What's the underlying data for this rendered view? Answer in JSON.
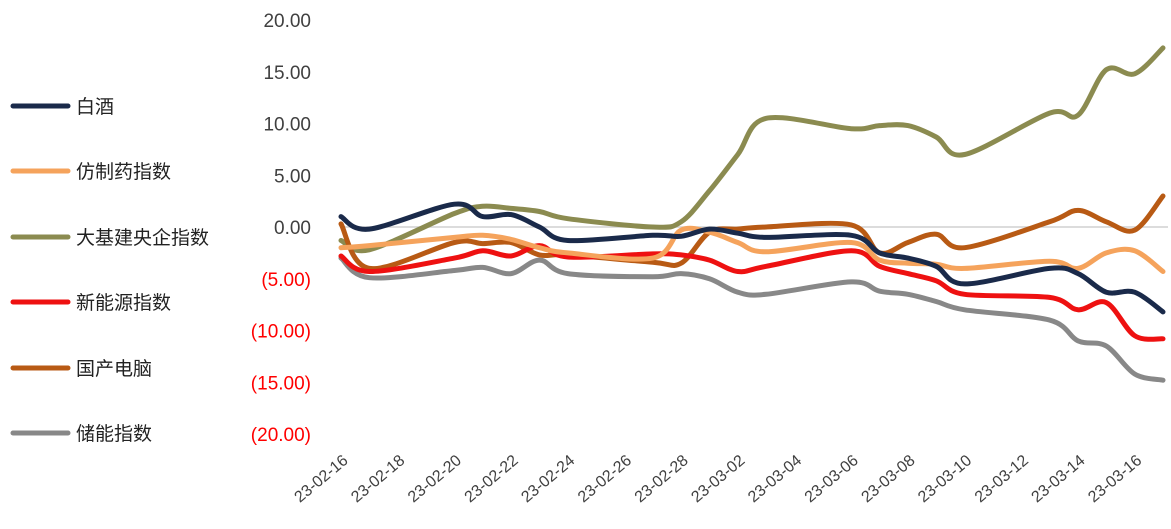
{
  "chart_data": {
    "type": "line",
    "title": "",
    "xlabel": "",
    "ylabel": "",
    "ylim": [
      -20,
      20
    ],
    "y_ticks": [
      {
        "value": 20,
        "label": "20.00"
      },
      {
        "value": 15,
        "label": "15.00"
      },
      {
        "value": 10,
        "label": "10.00"
      },
      {
        "value": 5,
        "label": "5.00"
      },
      {
        "value": 0,
        "label": "0.00"
      },
      {
        "value": -5,
        "label": "(5.00)"
      },
      {
        "value": -10,
        "label": "(10.00)"
      },
      {
        "value": -15,
        "label": "(15.00)"
      },
      {
        "value": -20,
        "label": "(20.00)"
      }
    ],
    "negative_label_color": "#ff0000",
    "positive_label_color": "#404040",
    "zero_line": true,
    "grid": false,
    "legend_position": "left",
    "x_tick_labels": [
      "23-02-16",
      "23-02-18",
      "23-02-20",
      "23-02-22",
      "23-02-24",
      "23-02-26",
      "23-02-28",
      "23-03-02",
      "23-03-04",
      "23-03-06",
      "23-03-08",
      "23-03-10",
      "23-03-12",
      "23-03-14",
      "23-03-16"
    ],
    "x": [
      "23-02-16",
      "23-02-17",
      "23-02-20",
      "23-02-21",
      "23-02-22",
      "23-02-23",
      "23-02-24",
      "23-02-27",
      "23-02-28",
      "23-03-01",
      "23-03-02",
      "23-03-03",
      "23-03-06",
      "23-03-07",
      "23-03-08",
      "23-03-09",
      "23-03-10",
      "23-03-13",
      "23-03-14",
      "23-03-15",
      "23-03-16",
      "23-03-17"
    ],
    "series": [
      {
        "name": "白酒",
        "color": "#1a2a4a",
        "values": [
          1.0,
          -0.2,
          2.2,
          1.0,
          1.2,
          0.0,
          -1.3,
          -0.8,
          -0.9,
          -0.2,
          -0.6,
          -1.0,
          -0.8,
          -2.5,
          -3.0,
          -3.8,
          -5.5,
          -4.0,
          -4.5,
          -6.3,
          -6.3,
          -8.2
        ]
      },
      {
        "name": "仿制药指数",
        "color": "#f5a35c",
        "values": [
          -2.0,
          -1.8,
          -1.0,
          -0.8,
          -1.2,
          -2.0,
          -2.5,
          -3.0,
          -0.3,
          -0.5,
          -1.5,
          -2.4,
          -1.5,
          -3.2,
          -3.5,
          -3.6,
          -4.0,
          -3.3,
          -4.0,
          -2.5,
          -2.3,
          -4.3
        ]
      },
      {
        "name": "大基建央企指数",
        "color": "#8b8b50",
        "values": [
          -1.3,
          -2.2,
          1.3,
          2.0,
          1.8,
          1.5,
          0.8,
          0.0,
          0.5,
          3.5,
          7.0,
          10.5,
          9.5,
          9.8,
          9.8,
          8.7,
          7.0,
          11.0,
          10.8,
          15.2,
          14.8,
          17.3
        ]
      },
      {
        "name": "新能源指数",
        "color": "#ee1111",
        "values": [
          -2.8,
          -4.3,
          -3.0,
          -2.3,
          -2.8,
          -1.8,
          -2.9,
          -2.6,
          -2.7,
          -3.2,
          -4.3,
          -3.8,
          -2.3,
          -3.8,
          -4.5,
          -5.2,
          -6.5,
          -6.8,
          -8.0,
          -7.3,
          -10.5,
          -10.8
        ]
      },
      {
        "name": "国产电脑",
        "color": "#b85a14",
        "values": [
          0.3,
          -4.0,
          -1.5,
          -1.6,
          -1.5,
          -2.7,
          -2.7,
          -3.4,
          -3.5,
          -0.5,
          -0.2,
          0.0,
          0.2,
          -2.5,
          -1.5,
          -0.7,
          -2.0,
          0.5,
          1.6,
          0.5,
          -0.3,
          3.0
        ]
      },
      {
        "name": "储能指数",
        "color": "#888888",
        "values": [
          -3.0,
          -4.9,
          -4.2,
          -3.9,
          -4.5,
          -3.2,
          -4.5,
          -4.8,
          -4.5,
          -5.0,
          -6.3,
          -6.5,
          -5.3,
          -6.2,
          -6.5,
          -7.2,
          -8.0,
          -9.0,
          -11.0,
          -11.5,
          -14.2,
          -14.8
        ]
      }
    ]
  }
}
